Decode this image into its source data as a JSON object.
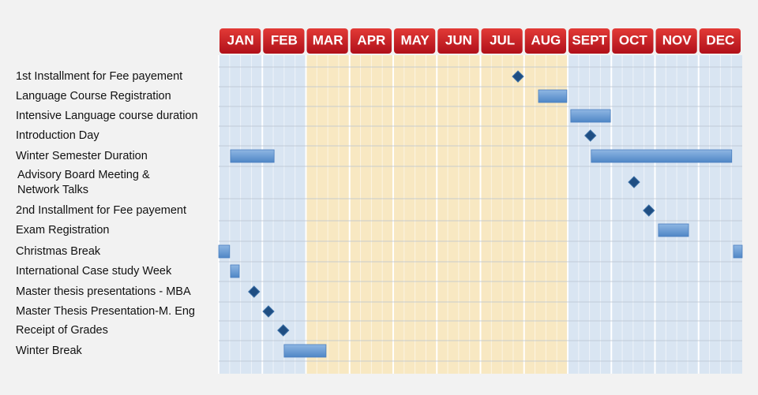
{
  "chart_data": {
    "type": "gantt",
    "categories": [
      "JAN",
      "FEB",
      "MAR",
      "APR",
      "MAY",
      "JUN",
      "JUL",
      "AUG",
      "SEPT",
      "OCT",
      "NOV",
      "DEC"
    ],
    "xlim": [
      0,
      12
    ],
    "tasks": [
      {
        "name": "1st Installment for Fee payement",
        "milestones": [
          6.86
        ]
      },
      {
        "name": "Language Course Registration",
        "spans": [
          [
            7.33,
            7.98
          ]
        ]
      },
      {
        "name": "Intensive Language course duration",
        "spans": [
          [
            8.07,
            8.98
          ]
        ]
      },
      {
        "name": "Introduction Day",
        "milestones": [
          8.52
        ]
      },
      {
        "name": "Winter Semester Duration",
        "spans": [
          [
            0.27,
            1.27
          ],
          [
            8.54,
            11.76
          ]
        ]
      },
      {
        "name": [
          "Advisory Board Meeting &",
          "Network Talks"
        ],
        "milestones": [
          9.52
        ]
      },
      {
        "name": "2nd Installment for Fee payement",
        "milestones": [
          9.86
        ]
      },
      {
        "name": "Exam Registration",
        "spans": [
          [
            10.08,
            10.77
          ]
        ]
      },
      {
        "name": "Christmas Break",
        "spans": [
          [
            0,
            0.25
          ],
          [
            11.8,
            12
          ]
        ]
      },
      {
        "name": "International Case study Week",
        "spans": [
          [
            0.27,
            0.47
          ]
        ]
      },
      {
        "name": "Master thesis presentations - MBA",
        "milestones": [
          0.81
        ]
      },
      {
        "name": "Master Thesis Presentation-M. Eng",
        "milestones": [
          1.14
        ]
      },
      {
        "name": "Receipt of Grades",
        "milestones": [
          1.48
        ]
      },
      {
        "name": "Winter Break",
        "spans": [
          [
            1.5,
            2.46
          ]
        ]
      }
    ]
  }
}
